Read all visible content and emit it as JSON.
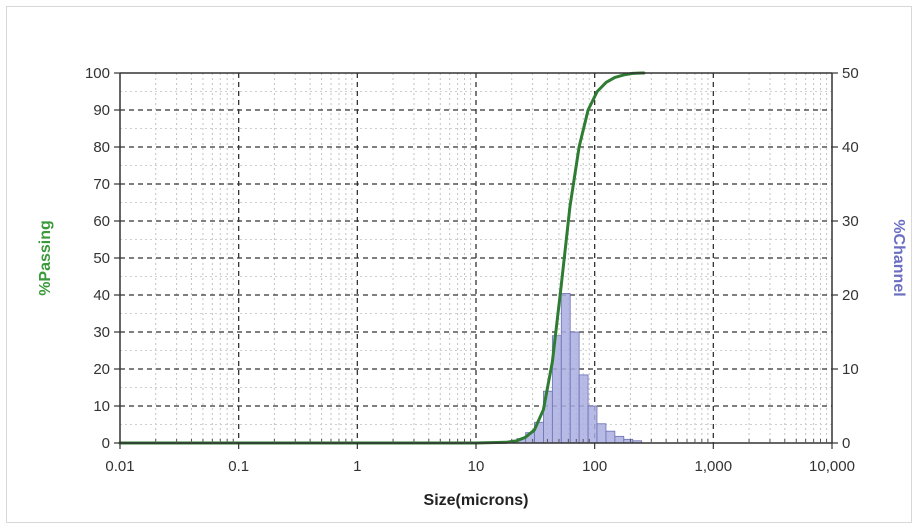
{
  "chart_data": {
    "type": "bar",
    "title": "",
    "xlabel": "Size(microns)",
    "ylabel_left": "%Passing",
    "ylabel_right": "%Channel",
    "x_scale": "log",
    "xlim": [
      0.01,
      10000
    ],
    "ylim_left": [
      0,
      100
    ],
    "ylim_right": [
      0,
      50
    ],
    "x_tick_labels": [
      "0.01",
      "0.1",
      "1",
      "10",
      "100",
      "1,000",
      "10,000"
    ],
    "y_left_tick_labels": [
      "0",
      "10",
      "20",
      "30",
      "40",
      "50",
      "60",
      "70",
      "80",
      "90",
      "100"
    ],
    "y_right_tick_labels": [
      "0",
      "10",
      "20",
      "30",
      "40",
      "50"
    ],
    "grid": true,
    "colors": {
      "passing_line": "#2e7d32",
      "passing_label": "#3a9a3a",
      "channel_bar": "#a9aee0",
      "channel_bar_edge": "#6b70b5",
      "channel_label": "#6b6fc2"
    },
    "series": [
      {
        "kind": "line",
        "axis": "left",
        "x": [
          0.01,
          0.1,
          1,
          10,
          18,
          22,
          26,
          31,
          37,
          44,
          52,
          62,
          74,
          88,
          105,
          125,
          148,
          176,
          209,
          250,
          260
        ],
        "y": [
          0,
          0,
          0,
          0,
          0.2,
          0.6,
          1.5,
          3.5,
          9,
          22,
          42,
          64,
          80,
          90,
          95,
          97.5,
          98.8,
          99.5,
          99.9,
          100,
          100
        ]
      },
      {
        "kind": "bar",
        "axis": "right",
        "bins": [
          {
            "from": 22.1,
            "to": 26.2,
            "value": 0.6
          },
          {
            "from": 26.2,
            "to": 31.1,
            "value": 1.4
          },
          {
            "from": 31.1,
            "to": 37.0,
            "value": 2.8
          },
          {
            "from": 37.0,
            "to": 44.0,
            "value": 7.0
          },
          {
            "from": 44.0,
            "to": 52.3,
            "value": 14.5
          },
          {
            "from": 52.3,
            "to": 62.2,
            "value": 20.2
          },
          {
            "from": 62.2,
            "to": 74.0,
            "value": 15.0
          },
          {
            "from": 74.0,
            "to": 88.0,
            "value": 9.2
          },
          {
            "from": 88.0,
            "to": 104.6,
            "value": 5.0
          },
          {
            "from": 104.6,
            "to": 124.5,
            "value": 2.6
          },
          {
            "from": 124.5,
            "to": 148.0,
            "value": 1.6
          },
          {
            "from": 148.0,
            "to": 176.0,
            "value": 0.9
          },
          {
            "from": 176.0,
            "to": 209.3,
            "value": 0.5
          },
          {
            "from": 209.3,
            "to": 248.9,
            "value": 0.3
          }
        ]
      }
    ]
  }
}
